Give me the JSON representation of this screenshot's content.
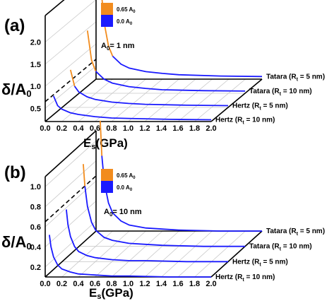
{
  "chart_data": [
    {
      "type": "line",
      "panel_label": "(a)",
      "annotation": "A0= 1 nm",
      "annotation_parts": {
        "pre": "A",
        "sub": "0",
        "post": "= 1 nm"
      },
      "xlabel": {
        "pre": "E",
        "sub": "s",
        "post": "(GPa)"
      },
      "ylabel": {
        "pre": "δ/A",
        "sub": "0"
      },
      "x_ticks": [
        "0.0",
        "0.2",
        "0.4",
        "0.6",
        "0.8",
        "1.0",
        "1.2",
        "1.4",
        "1.6",
        "1.8",
        "2.0"
      ],
      "y_ticks": [
        "0.5",
        "1.0",
        "1.5",
        "2.0"
      ],
      "xlim": [
        0,
        2.0
      ],
      "ylim": [
        0.2,
        2.6
      ],
      "legend": [
        {
          "label": "0.65 A",
          "sub": "0",
          "color": "#f28c1e"
        },
        {
          "label": "0.0 A",
          "sub": "0",
          "color": "#1a1aff"
        }
      ],
      "series": [
        {
          "name": "Hertz (Rt = 10 nm)",
          "label_pre": "Hertz (R",
          "label_sub": "t",
          "label_post": " = 10 nm)",
          "x": [
            0.1,
            0.15,
            0.2,
            0.3,
            0.4,
            0.6,
            0.8,
            1.0,
            1.5,
            2.0
          ],
          "y": [
            0.78,
            0.56,
            0.48,
            0.4,
            0.36,
            0.31,
            0.28,
            0.27,
            0.25,
            0.24
          ]
        },
        {
          "name": "Hertz (Rt = 5 nm)",
          "label_pre": "Hertz (R",
          "label_sub": "t",
          "label_post": " = 5 nm)",
          "x": [
            0.1,
            0.15,
            0.2,
            0.3,
            0.4,
            0.6,
            0.8,
            1.0,
            1.5,
            2.0
          ],
          "y": [
            1.05,
            0.68,
            0.55,
            0.44,
            0.38,
            0.32,
            0.29,
            0.27,
            0.25,
            0.24
          ]
        },
        {
          "name": "Tatara (Rt = 10 nm)",
          "label_pre": "Tatara (R",
          "label_sub": "t",
          "label_post": " = 10 nm)",
          "x": [
            0.1,
            0.15,
            0.2,
            0.3,
            0.4,
            0.6,
            0.8,
            1.0,
            1.5,
            2.0
          ],
          "y": [
            1.62,
            0.95,
            0.7,
            0.52,
            0.43,
            0.35,
            0.31,
            0.28,
            0.26,
            0.25
          ]
        },
        {
          "name": "Tatara (Rt = 5 nm)",
          "label_pre": "Tatara (R",
          "label_sub": "t",
          "label_post": " = 5 nm)",
          "x": [
            0.05,
            0.07,
            0.1,
            0.15,
            0.2,
            0.3,
            0.4,
            0.6,
            0.8,
            1.0,
            1.5,
            2.0
          ],
          "y": [
            2.9,
            2.05,
            1.45,
            0.95,
            0.72,
            0.54,
            0.45,
            0.37,
            0.33,
            0.3,
            0.27,
            0.26
          ]
        }
      ],
      "threshold_y": 0.65
    },
    {
      "type": "line",
      "panel_label": "(b)",
      "annotation": "A0= 10 nm",
      "annotation_parts": {
        "pre": "A",
        "sub": "0",
        "post": "= 10 nm"
      },
      "xlabel": {
        "pre": "E",
        "sub": "s",
        "post": "(GPa)"
      },
      "ylabel": {
        "pre": "δ/A",
        "sub": "0"
      },
      "x_ticks": [
        "0.0",
        "0.2",
        "0.4",
        "0.6",
        "0.8",
        "1.0",
        "1.2",
        "1.4",
        "1.6",
        "1.8",
        "2.0"
      ],
      "y_ticks": [
        "0.2",
        "0.4",
        "0.6",
        "0.8",
        "1.0"
      ],
      "xlim": [
        0,
        2.0
      ],
      "ylim": [
        0.1,
        1.1
      ],
      "legend": [
        {
          "label": "0.65 A",
          "sub": "0",
          "color": "#f28c1e"
        },
        {
          "label": "0.0 A",
          "sub": "0",
          "color": "#1a1aff"
        }
      ],
      "series": [
        {
          "name": "Hertz (Rt = 10 nm)",
          "label_pre": "Hertz (R",
          "label_sub": "t",
          "label_post": " = 10 nm)",
          "x": [
            0.05,
            0.07,
            0.1,
            0.15,
            0.2,
            0.3,
            0.4,
            0.6,
            0.8,
            1.0,
            1.5,
            2.0
          ],
          "y": [
            0.52,
            0.4,
            0.3,
            0.22,
            0.18,
            0.15,
            0.13,
            0.12,
            0.11,
            0.11,
            0.1,
            0.1
          ]
        },
        {
          "name": "Hertz (Rt = 5 nm)",
          "label_pre": "Hertz (R",
          "label_sub": "t",
          "label_post": " = 5 nm)",
          "x": [
            0.05,
            0.07,
            0.1,
            0.15,
            0.2,
            0.3,
            0.4,
            0.6,
            0.8,
            1.0,
            1.5,
            2.0
          ],
          "y": [
            0.62,
            0.47,
            0.35,
            0.25,
            0.2,
            0.16,
            0.14,
            0.12,
            0.11,
            0.11,
            0.1,
            0.1
          ]
        },
        {
          "name": "Tatara (Rt = 10 nm)",
          "label_pre": "Tatara (R",
          "label_sub": "t",
          "label_post": " = 10 nm)",
          "x": [
            0.05,
            0.07,
            0.1,
            0.15,
            0.2,
            0.3,
            0.4,
            0.6,
            0.8,
            1.0,
            1.5,
            2.0
          ],
          "y": [
            0.92,
            0.7,
            0.5,
            0.34,
            0.26,
            0.19,
            0.16,
            0.13,
            0.12,
            0.11,
            0.1,
            0.1
          ]
        },
        {
          "name": "Tatara (Rt = 5 nm)",
          "label_pre": "Tatara (R",
          "label_sub": "t",
          "label_post": " = 5 nm)",
          "x": [
            0.05,
            0.07,
            0.1,
            0.15,
            0.2,
            0.3,
            0.4,
            0.6,
            0.8,
            1.0,
            1.5,
            2.0
          ],
          "y": [
            1.2,
            0.85,
            0.58,
            0.38,
            0.28,
            0.2,
            0.16,
            0.13,
            0.12,
            0.11,
            0.1,
            0.1
          ]
        }
      ],
      "threshold_y": 0.65
    }
  ]
}
